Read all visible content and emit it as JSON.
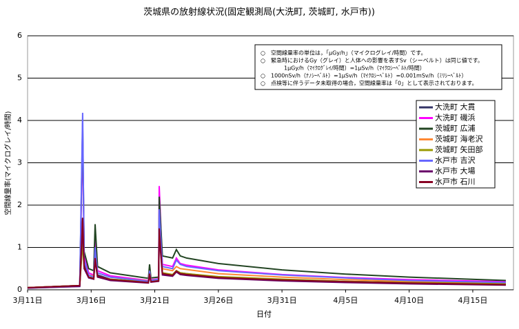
{
  "chart_data": {
    "type": "line",
    "title": "茨城県の放射線状況(固定観測局(大洗町, 茨城町, 水戸市))",
    "x_label": "日付",
    "y_label": "空間線量率(マイクログレイ/時間)",
    "x": [
      0,
      4.1,
      4.33,
      4.45,
      4.8,
      5.2,
      5.31,
      5.5,
      6.5,
      9.5,
      9.59,
      9.7,
      10.3,
      10.35,
      10.6,
      11.4,
      11.7,
      12.0,
      12.5,
      15,
      20,
      25,
      30,
      37.6
    ],
    "xlim": [
      0,
      38.2
    ],
    "xticks": [
      {
        "value": 0,
        "label": "3月11日"
      },
      {
        "value": 5,
        "label": "3月16日"
      },
      {
        "value": 10,
        "label": "3月21日"
      },
      {
        "value": 15,
        "label": "3月26日"
      },
      {
        "value": 20,
        "label": "3月31日"
      },
      {
        "value": 25,
        "label": "4月5日"
      },
      {
        "value": 30,
        "label": "4月10日"
      },
      {
        "value": 35,
        "label": "4月15日"
      }
    ],
    "ylim": [
      0,
      6
    ],
    "yticks": [
      0,
      1,
      2,
      3,
      4,
      5,
      6
    ],
    "grid": true,
    "notes": [
      "○　空間線量率の単位は，「μGy/h」（マイクログレイ/時間）です。",
      "○　緊急時におけるGy（グレイ）と人体への影響を表すSv（シーベルト）は同じ値です。",
      "1μGy/h（ﾏｲｸﾛｸﾞﾚｲ/時間）=1μSv/h（ﾏｲｸﾛｼｰﾍﾞﾙﾄ/時間）",
      "○　1000nSv/h（ﾅﾉｼｰﾍﾞﾙﾄ）=1μSv/h（ﾏｲｸﾛｼｰﾍﾞﾙﾄ）=0.001mSv/h（ﾐﾘｼｰﾍﾞﾙﾄ）",
      "○　点検等に伴うデータ未取得の場合，空間線量率は「0」として表示されております。"
    ],
    "series": [
      {
        "name": "大洗町 大貫",
        "color": "#333366",
        "values": [
          0.05,
          0.1,
          1.7,
          0.6,
          0.3,
          0.28,
          0.8,
          0.35,
          0.25,
          0.18,
          0.4,
          0.2,
          0.22,
          1.5,
          0.4,
          0.35,
          0.45,
          0.4,
          0.38,
          0.3,
          0.24,
          0.2,
          0.17,
          0.13
        ]
      },
      {
        "name": "大洗町 磯浜",
        "color": "#ff00ff",
        "values": [
          0.04,
          0.1,
          3.6,
          0.8,
          0.4,
          0.35,
          1.2,
          0.45,
          0.33,
          0.22,
          0.5,
          0.24,
          0.26,
          2.45,
          0.6,
          0.55,
          0.75,
          0.62,
          0.58,
          0.47,
          0.36,
          0.29,
          0.24,
          0.19
        ]
      },
      {
        "name": "茨城町 広浦",
        "color": "#224422",
        "values": [
          0.05,
          0.1,
          3.95,
          0.9,
          0.5,
          0.45,
          1.55,
          0.55,
          0.4,
          0.27,
          0.6,
          0.28,
          0.3,
          2.2,
          0.8,
          0.75,
          0.95,
          0.8,
          0.75,
          0.62,
          0.47,
          0.37,
          0.3,
          0.22
        ]
      },
      {
        "name": "茨城町 海老沢",
        "color": "#ff8833",
        "values": [
          0.05,
          0.1,
          1.2,
          0.7,
          0.35,
          0.33,
          0.9,
          0.4,
          0.3,
          0.21,
          0.45,
          0.23,
          0.25,
          1.7,
          0.5,
          0.45,
          0.55,
          0.5,
          0.48,
          0.38,
          0.3,
          0.24,
          0.2,
          0.16
        ]
      },
      {
        "name": "茨城町 矢田部",
        "color": "#999900",
        "values": [
          0.05,
          0.1,
          1.1,
          0.5,
          0.3,
          0.28,
          0.7,
          0.3,
          0.25,
          0.19,
          0.4,
          0.2,
          0.22,
          1.4,
          0.4,
          0.36,
          0.45,
          0.4,
          0.38,
          0.31,
          0.25,
          0.2,
          0.17,
          0.14
        ]
      },
      {
        "name": "水戸市 吉沢",
        "color": "#6666ff",
        "values": [
          0.04,
          0.08,
          4.18,
          0.7,
          0.35,
          0.3,
          1.0,
          0.4,
          0.3,
          0.2,
          0.45,
          0.22,
          0.25,
          1.9,
          0.55,
          0.5,
          0.7,
          0.6,
          0.55,
          0.45,
          0.35,
          0.28,
          0.22,
          0.17
        ]
      },
      {
        "name": "水戸市 大場",
        "color": "#660066",
        "values": [
          0.04,
          0.08,
          1.5,
          0.5,
          0.28,
          0.25,
          0.7,
          0.3,
          0.22,
          0.16,
          0.35,
          0.18,
          0.2,
          1.3,
          0.35,
          0.32,
          0.42,
          0.36,
          0.34,
          0.27,
          0.21,
          0.17,
          0.14,
          0.11
        ]
      },
      {
        "name": "水戸市 石川",
        "color": "#880022",
        "values": [
          0.05,
          0.1,
          1.7,
          0.55,
          0.3,
          0.26,
          0.75,
          0.32,
          0.24,
          0.17,
          0.38,
          0.19,
          0.21,
          1.45,
          0.38,
          0.34,
          0.44,
          0.38,
          0.36,
          0.29,
          0.23,
          0.19,
          0.16,
          0.12
        ]
      }
    ]
  }
}
